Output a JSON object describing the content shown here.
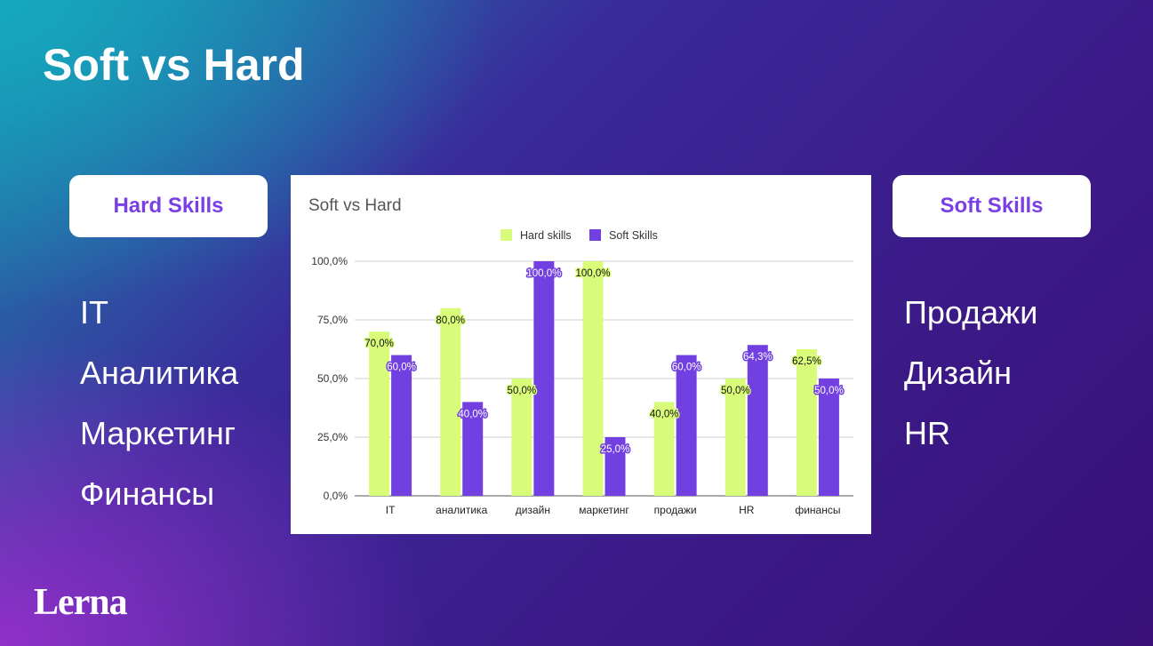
{
  "slide": {
    "title": "Soft vs Hard",
    "left_label": "Hard Skills",
    "right_label": "Soft Skills",
    "left_items": [
      "IT",
      "Аналитика",
      "Маркетинг",
      "Финансы"
    ],
    "right_items": [
      "Продажи",
      "Дизайн",
      "HR"
    ],
    "logo_text": "Lerna"
  },
  "colors": {
    "hard": "#d9fb7a",
    "soft": "#7240e0",
    "accent": "#7a3fe4"
  },
  "chart_data": {
    "type": "bar",
    "title": "Soft vs Hard",
    "categories": [
      "IT",
      "аналитика",
      "дизайн",
      "маркетинг",
      "продажи",
      "HR",
      "финансы"
    ],
    "series": [
      {
        "name": "Hard skills",
        "values": [
          70.0,
          80.0,
          50.0,
          100.0,
          40.0,
          50.0,
          62.5
        ]
      },
      {
        "name": "Soft Skills",
        "values": [
          60.0,
          40.0,
          100.0,
          25.0,
          60.0,
          64.3,
          50.0
        ]
      }
    ],
    "value_labels": [
      [
        "70,0%",
        "80,0%",
        "50,0%",
        "100,0%",
        "40,0%",
        "50,0%",
        "62,5%"
      ],
      [
        "60,0%",
        "40,0%",
        "100,0%",
        "25,0%",
        "60,0%",
        "64,3%",
        "50,0%"
      ]
    ],
    "yticks": [
      0,
      25,
      50,
      75,
      100
    ],
    "ytick_labels": [
      "0,0%",
      "25,0%",
      "50,0%",
      "75,0%",
      "100,0%"
    ],
    "ylim": [
      0,
      100
    ],
    "grid": true,
    "legend": "top-center",
    "xlabel": "",
    "ylabel": ""
  }
}
